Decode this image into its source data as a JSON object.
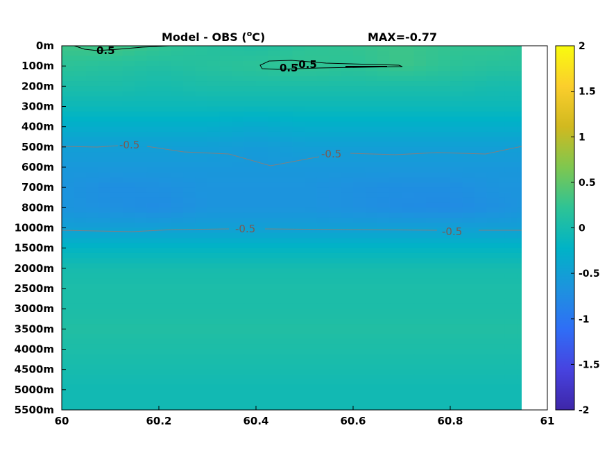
{
  "chart_data": {
    "type": "heatmap",
    "title_left": "Model - OBS (",
    "title_unit_sup": "o",
    "title_unit_tail": "C)",
    "title_right": "MAX=-0.77",
    "x": [
      60,
      60.1,
      60.2,
      60.3,
      60.4,
      60.5,
      60.6,
      60.7,
      60.8,
      60.9,
      60.95
    ],
    "xlim": [
      60,
      61
    ],
    "x_ticks": [
      "60",
      "60.2",
      "60.4",
      "60.6",
      "60.8",
      "61"
    ],
    "y_levels": [
      "0m",
      "100m",
      "200m",
      "300m",
      "400m",
      "500m",
      "600m",
      "700m",
      "800m",
      "1000m",
      "1500m",
      "2000m",
      "2500m",
      "3000m",
      "3500m",
      "4000m",
      "4500m",
      "5000m",
      "5500m"
    ],
    "values": [
      [
        0.3,
        0.35,
        0.25,
        0.15,
        0.1,
        0.2,
        0.25,
        0.3,
        0.25,
        0.25,
        0.2
      ],
      [
        0.2,
        0.15,
        0.1,
        0.15,
        0.2,
        0.25,
        0.2,
        0.3,
        0.2,
        0.15,
        0.15
      ],
      [
        0.05,
        0.05,
        0.0,
        0.05,
        0.05,
        0.05,
        0.05,
        0.05,
        0.05,
        0.0,
        0.0
      ],
      [
        -0.1,
        -0.1,
        -0.1,
        -0.1,
        -0.1,
        -0.1,
        -0.1,
        -0.1,
        -0.1,
        -0.1,
        -0.1
      ],
      [
        -0.3,
        -0.3,
        -0.3,
        -0.3,
        -0.35,
        -0.3,
        -0.3,
        -0.3,
        -0.3,
        -0.3,
        -0.3
      ],
      [
        -0.5,
        -0.5,
        -0.5,
        -0.5,
        -0.55,
        -0.5,
        -0.5,
        -0.5,
        -0.5,
        -0.5,
        -0.5
      ],
      [
        -0.6,
        -0.6,
        -0.6,
        -0.6,
        -0.6,
        -0.6,
        -0.6,
        -0.6,
        -0.6,
        -0.6,
        -0.6
      ],
      [
        -0.65,
        -0.72,
        -0.7,
        -0.65,
        -0.65,
        -0.65,
        -0.7,
        -0.72,
        -0.72,
        -0.65,
        -0.65
      ],
      [
        -0.65,
        -0.7,
        -0.75,
        -0.65,
        -0.65,
        -0.65,
        -0.7,
        -0.75,
        -0.77,
        -0.7,
        -0.65
      ],
      [
        -0.5,
        -0.5,
        -0.5,
        -0.5,
        -0.5,
        -0.5,
        -0.5,
        -0.5,
        -0.5,
        -0.5,
        -0.5
      ],
      [
        -0.2,
        -0.2,
        -0.2,
        -0.2,
        -0.2,
        -0.2,
        -0.2,
        -0.2,
        -0.2,
        -0.2,
        -0.2
      ],
      [
        0.0,
        0.0,
        0.0,
        0.0,
        0.0,
        0.0,
        0.0,
        0.0,
        0.0,
        0.0,
        0.0
      ],
      [
        0.05,
        0.05,
        0.05,
        0.05,
        0.05,
        0.05,
        0.05,
        0.05,
        0.05,
        0.05,
        0.05
      ],
      [
        0.05,
        0.05,
        0.05,
        0.05,
        0.05,
        0.05,
        0.05,
        0.05,
        0.05,
        0.05,
        0.05
      ],
      [
        0.1,
        0.1,
        0.1,
        0.1,
        0.1,
        0.1,
        0.1,
        0.1,
        0.1,
        0.1,
        0.1
      ],
      [
        0.05,
        0.05,
        0.05,
        0.05,
        0.05,
        0.05,
        0.05,
        0.05,
        0.05,
        0.05,
        0.05
      ],
      [
        0.0,
        0.0,
        0.0,
        0.0,
        0.0,
        0.0,
        0.0,
        0.0,
        0.0,
        0.0,
        0.0
      ],
      [
        -0.05,
        -0.05,
        -0.05,
        -0.05,
        -0.05,
        -0.05,
        -0.05,
        -0.05,
        -0.05,
        -0.05,
        -0.05
      ],
      [
        -0.05,
        -0.05,
        -0.05,
        -0.05,
        -0.05,
        -0.05,
        -0.05,
        -0.05,
        -0.05,
        -0.05,
        -0.05
      ]
    ],
    "colorbar": {
      "range": [
        -2,
        2
      ],
      "ticks": [
        "2",
        "1.5",
        "1",
        "0.5",
        "0",
        "-0.5",
        "-1",
        "-1.5",
        "-2"
      ],
      "colormap": [
        "#3e26a8",
        "#4743e0",
        "#2f6ef6",
        "#1d93de",
        "#00b3c6",
        "#2ec395",
        "#7fc74f",
        "#d1b91f",
        "#fbce2c",
        "#f9fb0e"
      ]
    },
    "contours": [
      {
        "label": "0.5",
        "color": "#000000"
      },
      {
        "label": "-0.5",
        "color": "#000000"
      },
      {
        "label": "0.5",
        "color": "#000000"
      },
      {
        "label": "-0.5",
        "color": "#808080"
      },
      {
        "label": "-0.5",
        "color": "#808080"
      },
      {
        "label": "-0.5",
        "color": "#808080"
      },
      {
        "label": "-0.5",
        "color": "#808080"
      }
    ],
    "grid": false,
    "legend": "colorbar-right"
  }
}
